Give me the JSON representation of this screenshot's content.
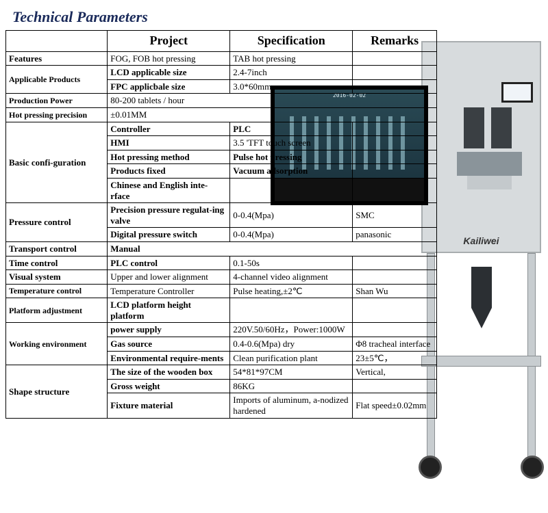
{
  "title": "Technical Parameters",
  "headers": {
    "c1": "Project",
    "c2": "Specification",
    "c3": "Remarks"
  },
  "brand": "Kailiwei",
  "monitor_date": "2016-02-02",
  "rows": [
    {
      "c0": "Features",
      "c0cls": "c0",
      "c1": "FOG, FOB hot pressing",
      "c2": "TAB hot pressing",
      "c3": ""
    },
    {
      "c0": "Applicable Products",
      "c0cls": "c0 small",
      "c0rs": 2,
      "c1": "LCD applicable size",
      "c1cls": "bold sz15",
      "c2": "2.4-7inch",
      "c2cls": "sz15",
      "c3": ""
    },
    {
      "c1": "FPC applicbale size",
      "c1cls": "bold sz15",
      "c2": "3.0*60mm",
      "c2cls": "sz15",
      "c3": ""
    },
    {
      "c0": "Production Power",
      "c0cls": "c0 small",
      "c1": "80-200 tablets / hour",
      "c1cs": 3,
      "c1cls": "sz15"
    },
    {
      "c0": "Hot pressing precision",
      "c0cls": "c0 small",
      "c1": "±0.01MM",
      "c1cs": 3,
      "c1cls": "sz15"
    },
    {
      "c0": "Basic confi-guration",
      "c0cls": "c0",
      "c0rs": 5,
      "c1": "Controller",
      "c1cls": "bold sz15",
      "c2": "PLC",
      "c2cls": "bold sz15",
      "c3": ""
    },
    {
      "c1": "HMI",
      "c1cls": "bold sz15",
      "c2": "3.5 'TFT touch screen",
      "c2cls": "sz12",
      "c3": ""
    },
    {
      "c1": "Hot pressing method",
      "c1cls": "bold sz15",
      "c2": "Pulse hot pressing",
      "c2cls": "bold sz15",
      "c3": ""
    },
    {
      "c1": "Products fixed",
      "c1cls": "bold sz15",
      "c2": "Vacuum adsorption",
      "c2cls": "bold sz15",
      "c3": ""
    },
    {
      "c1": "Chinese and English  inte-rface",
      "c1cls": "bold sz11",
      "c2": "",
      "c3": ""
    },
    {
      "c0": "Pressure control",
      "c0cls": "c0",
      "c0rs": 2,
      "c1": "Precision pressure regulat-ing valve",
      "c1cls": "bold sz11",
      "c2": "0-0.4(Mpa)",
      "c2cls": "sz12",
      "c3": "SMC"
    },
    {
      "c1": "Digital pressure switch",
      "c1cls": "bold sz12",
      "c2": "0-0.4(Mpa)",
      "c2cls": "sz12",
      "c3": "panasonic"
    },
    {
      "c0": "Transport control",
      "c0cls": "c0",
      "c1": "Manual",
      "c1cls": "bold sz15",
      "c1cs": 3
    },
    {
      "c0": "Time control",
      "c0cls": "c0",
      "c1": "PLC control",
      "c1cls": "bold sz15",
      "c2": "0.1-50s",
      "c2cls": "sz15",
      "c3": ""
    },
    {
      "c0": "Visual system",
      "c0cls": "c0",
      "c1": "Upper and lower alignment",
      "c1cls": "sz12",
      "c2": "4-channel video alignment",
      "c2cls": "sz12",
      "c3": ""
    },
    {
      "c0": "Temperature control",
      "c0cls": "c0 small",
      "c1": "Temperature Controller",
      "c1cls": "sz12",
      "c2": "Pulse heating,±2℃",
      "c2cls": "sz12",
      "c3": "Shan Wu"
    },
    {
      "c0": "Platform adjustment",
      "c0cls": "c0 small",
      "c1": "LCD platform height platform",
      "c1cls": "bold sz11",
      "c2": "",
      "c3": ""
    },
    {
      "c0": "Working environment",
      "c0cls": "c0 small",
      "c0rs": 3,
      "c1": "power supply",
      "c1cls": "bold sz15",
      "c2": "220V.50/60Hz，Power:1000W",
      "c2cls": "sz11",
      "c3": ""
    },
    {
      "c1": "Gas source",
      "c1cls": "bold sz15",
      "c2": "0.4-0.6(Mpa) dry",
      "c2cls": "sz12",
      "c3": "Φ8 tracheal interface",
      "c3cls": "sz11"
    },
    {
      "c1": "Environmental require-ments",
      "c1cls": "bold sz11",
      "c2": "Clean purification plant",
      "c2cls": "sz12",
      "c3": "23±5℃，"
    },
    {
      "c0": "Shape structure",
      "c0cls": "c0",
      "c0rs": 3,
      "c1": "The size of the wooden box",
      "c1cls": "bold sz11",
      "c2": "54*81*97CM",
      "c2cls": "sz12",
      "c3": "Vertical,"
    },
    {
      "c1": "Gross weight",
      "c1cls": "bold sz12",
      "c2": "86KG",
      "c2cls": "sz12",
      "c3": ""
    },
    {
      "c1": "Fixture material",
      "c1cls": "bold sz12",
      "c2": "Imports of aluminum, a-nodized hardened",
      "c2cls": "sz11",
      "c3": "Flat speed±0.02mm",
      "c3cls": "sz11"
    }
  ],
  "colors": {
    "title": "#1a2a5a",
    "border": "#000000",
    "machine_body": "#d7dbdd",
    "machine_edge": "#a8adaf",
    "monitor": "#111111",
    "screen_grad_top": "#2a4a55",
    "screen_grad_bot": "#1c3540"
  }
}
